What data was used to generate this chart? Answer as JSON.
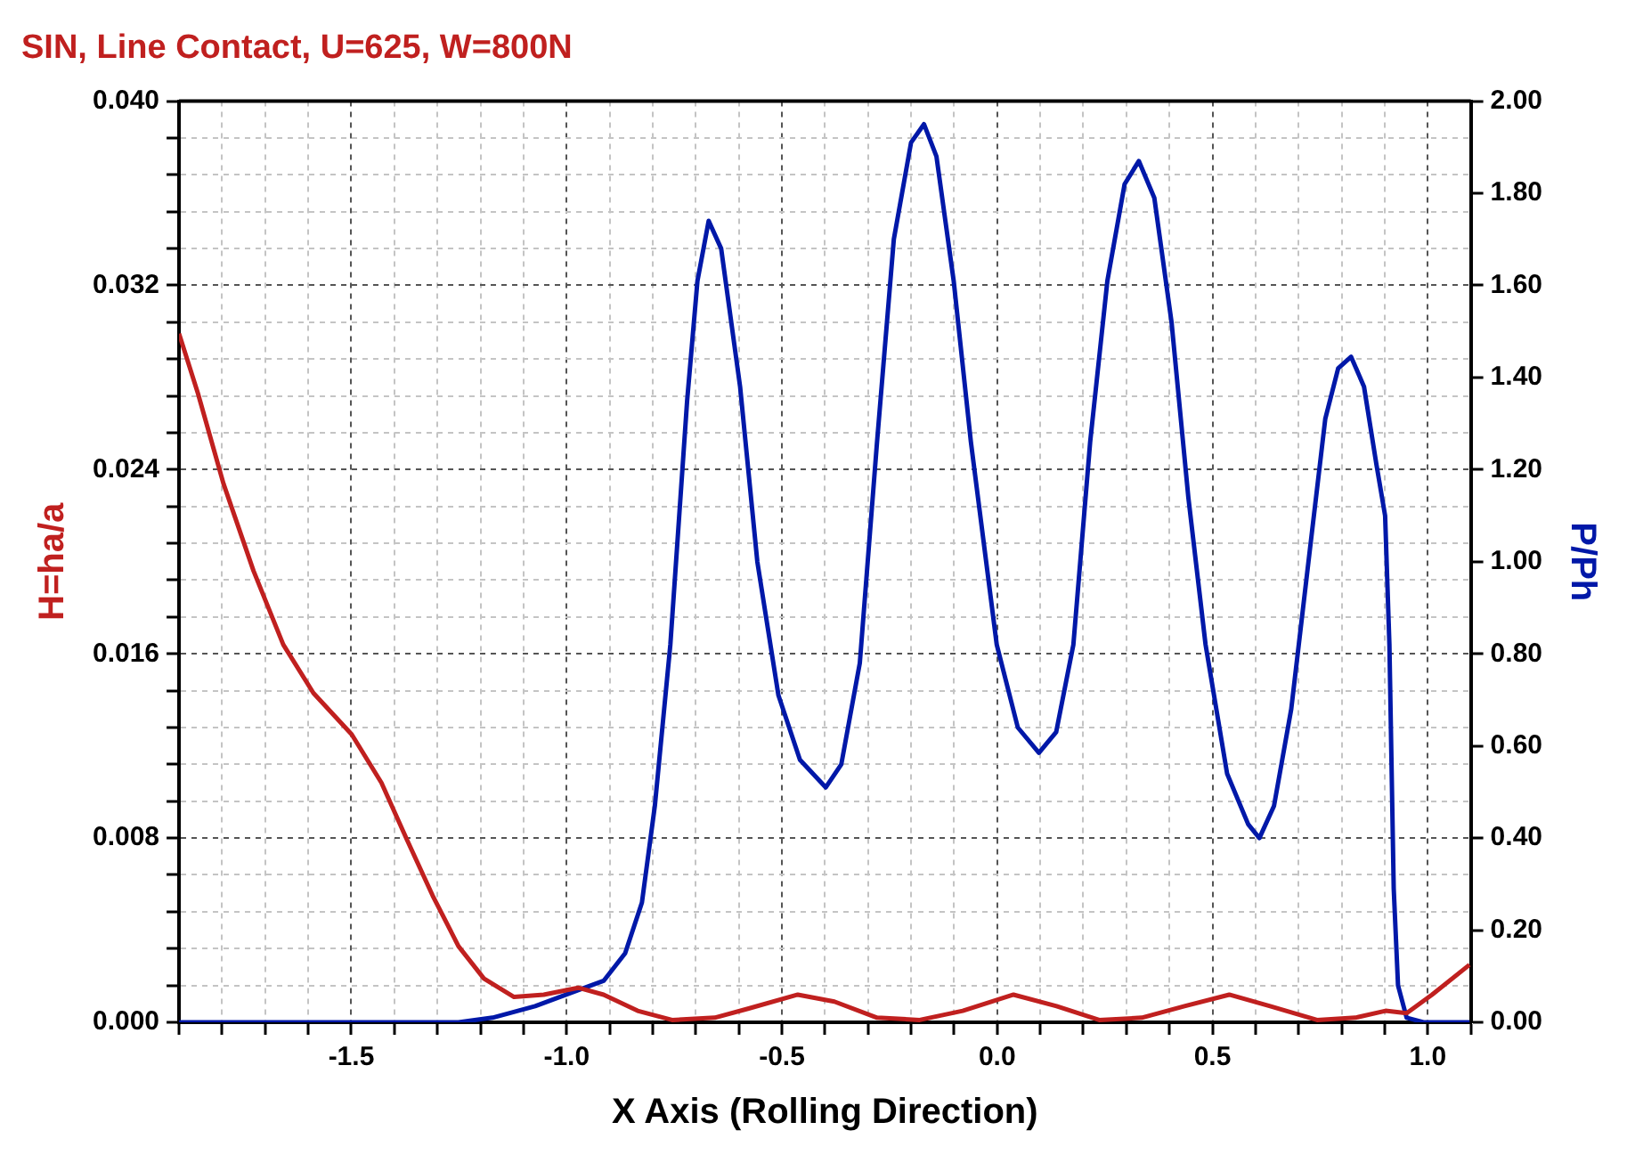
{
  "chart_data": {
    "type": "line",
    "title": "SIN, Line Contact, U=625, W=800N",
    "xlabel": "X Axis (Rolling Direction)",
    "ylabel": "H=ha/a",
    "y2label": "P/Ph",
    "grid": true,
    "legend": false,
    "xlim": [
      -1.9,
      1.1
    ],
    "xticks": [
      {
        "value": -1.9,
        "label": null
      },
      {
        "value": -1.8,
        "label": null
      },
      {
        "value": -1.7,
        "label": null
      },
      {
        "value": -1.6,
        "label": null
      },
      -1.5,
      {
        "value": -1.4,
        "label": null
      },
      {
        "value": -1.3,
        "label": null
      },
      {
        "value": -1.2,
        "label": null
      },
      {
        "value": -1.1,
        "label": null
      },
      {
        "value": -1,
        "label": "-1.0"
      },
      {
        "value": -0.9,
        "label": null
      },
      {
        "value": -0.8,
        "label": null
      },
      {
        "value": -0.7,
        "label": null
      },
      {
        "value": -0.6,
        "label": null
      },
      -0.5,
      {
        "value": -0.4,
        "label": null
      },
      {
        "value": -0.3,
        "label": null
      },
      {
        "value": -0.2,
        "label": null
      },
      {
        "value": -0.1,
        "label": null
      },
      {
        "value": 0,
        "label": "0.0"
      },
      {
        "value": 0.1,
        "label": null
      },
      {
        "value": 0.2,
        "label": null
      },
      {
        "value": 0.3,
        "label": null
      },
      {
        "value": 0.4,
        "label": null
      },
      0.5,
      {
        "value": 0.6,
        "label": null
      },
      {
        "value": 0.7,
        "label": null
      },
      {
        "value": 0.8,
        "label": null
      },
      {
        "value": 0.9,
        "label": null
      },
      {
        "value": 1,
        "label": "1.0"
      },
      {
        "value": 1.1,
        "label": null
      }
    ],
    "ylim": [
      0,
      0.04
    ],
    "yticks": [
      {
        "value": 0,
        "label": "0.000"
      },
      {
        "value": 0.0016,
        "label": null
      },
      {
        "value": 0.0032,
        "label": null
      },
      {
        "value": 0.0048,
        "label": null
      },
      {
        "value": 0.0064,
        "label": null
      },
      0.008,
      {
        "value": 0.0096,
        "label": null
      },
      {
        "value": 0.0112,
        "label": null
      },
      {
        "value": 0.0128,
        "label": null
      },
      {
        "value": 0.0144,
        "label": null
      },
      0.016,
      {
        "value": 0.0176,
        "label": null
      },
      {
        "value": 0.0192,
        "label": null
      },
      {
        "value": 0.0208,
        "label": null
      },
      {
        "value": 0.0224,
        "label": null
      },
      0.024,
      {
        "value": 0.0256,
        "label": null
      },
      {
        "value": 0.0272,
        "label": null
      },
      {
        "value": 0.0288,
        "label": null
      },
      {
        "value": 0.0304,
        "label": null
      },
      0.032,
      {
        "value": 0.0336,
        "label": null
      },
      {
        "value": 0.0352,
        "label": null
      },
      {
        "value": 0.0368,
        "label": null
      },
      {
        "value": 0.0384,
        "label": null
      },
      {
        "value": 0.04,
        "label": "0.040"
      }
    ],
    "y2lim": [
      0,
      2
    ],
    "y2ticks": [
      {
        "value": 0,
        "label": "0.00"
      },
      {
        "value": 0.2,
        "label": "0.20"
      },
      {
        "value": 0.4,
        "label": "0.40"
      },
      {
        "value": 0.6,
        "label": "0.60"
      },
      {
        "value": 0.8,
        "label": "0.80"
      },
      {
        "value": 1,
        "label": "1.00"
      },
      {
        "value": 1.2,
        "label": "1.20"
      },
      {
        "value": 1.4,
        "label": "1.40"
      },
      {
        "value": 1.6,
        "label": "1.60"
      },
      {
        "value": 1.8,
        "label": "1.80"
      },
      {
        "value": 2,
        "label": "2.00"
      }
    ],
    "series": [
      {
        "color": "#c0201f",
        "x": [
          -1.9,
          -1.856,
          -1.797,
          -1.727,
          -1.658,
          -1.588,
          -1.499,
          -1.43,
          -1.37,
          -1.311,
          -1.251,
          -1.192,
          -1.122,
          -1.053,
          -0.973,
          -0.914,
          -0.835,
          -0.755,
          -0.656,
          -0.577,
          -0.463,
          -0.378,
          -0.279,
          -0.18,
          -0.08,
          0.038,
          0.138,
          0.237,
          0.336,
          0.435,
          0.539,
          0.634,
          0.743,
          0.832,
          0.902,
          0.951,
          1.01,
          1.097
        ],
        "values": [
          0.0299,
          0.0273,
          0.0234,
          0.0196,
          0.0164,
          0.0143,
          0.0125,
          0.0104,
          0.0079,
          0.0055,
          0.0033,
          0.0019,
          0.0011,
          0.0012,
          0.0015,
          0.0012,
          0.0005,
          0.0001,
          0.0002,
          0.0006,
          0.0012,
          0.0009,
          0.0002,
          0.0001,
          0.0005,
          0.0012,
          0.0007,
          0.0001,
          0.0002,
          0.0007,
          0.0012,
          0.0007,
          0.0001,
          0.0002,
          0.0005,
          0.0004,
          0.0012,
          0.0025
        ]
      },
      {
        "color": "#0018a8",
        "axis": "y2",
        "x": [
          -1.9,
          -1.251,
          -1.172,
          -1.073,
          -0.973,
          -0.914,
          -0.864,
          -0.825,
          -0.795,
          -0.759,
          -0.72,
          -0.696,
          -0.67,
          -0.641,
          -0.597,
          -0.557,
          -0.508,
          -0.458,
          -0.398,
          -0.362,
          -0.319,
          -0.279,
          -0.24,
          -0.2,
          -0.17,
          -0.141,
          -0.101,
          -0.061,
          -0.001,
          0.048,
          0.097,
          0.137,
          0.177,
          0.216,
          0.256,
          0.296,
          0.329,
          0.365,
          0.405,
          0.444,
          0.484,
          0.534,
          0.583,
          0.609,
          0.643,
          0.683,
          0.723,
          0.762,
          0.792,
          0.822,
          0.852,
          0.881,
          0.901,
          0.911,
          0.921,
          0.931,
          0.951,
          0.99,
          1.097
        ],
        "values": [
          0,
          0,
          0.01,
          0.035,
          0.07,
          0.09,
          0.15,
          0.26,
          0.47,
          0.82,
          1.35,
          1.61,
          1.74,
          1.68,
          1.38,
          1.0,
          0.71,
          0.57,
          0.51,
          0.56,
          0.78,
          1.26,
          1.7,
          1.91,
          1.95,
          1.88,
          1.61,
          1.26,
          0.82,
          0.64,
          0.585,
          0.63,
          0.82,
          1.26,
          1.61,
          1.82,
          1.87,
          1.79,
          1.52,
          1.14,
          0.82,
          0.54,
          0.43,
          0.4,
          0.47,
          0.68,
          1.0,
          1.31,
          1.42,
          1.445,
          1.38,
          1.21,
          1.1,
          0.82,
          0.29,
          0.08,
          0.01,
          0,
          0
        ]
      }
    ]
  }
}
